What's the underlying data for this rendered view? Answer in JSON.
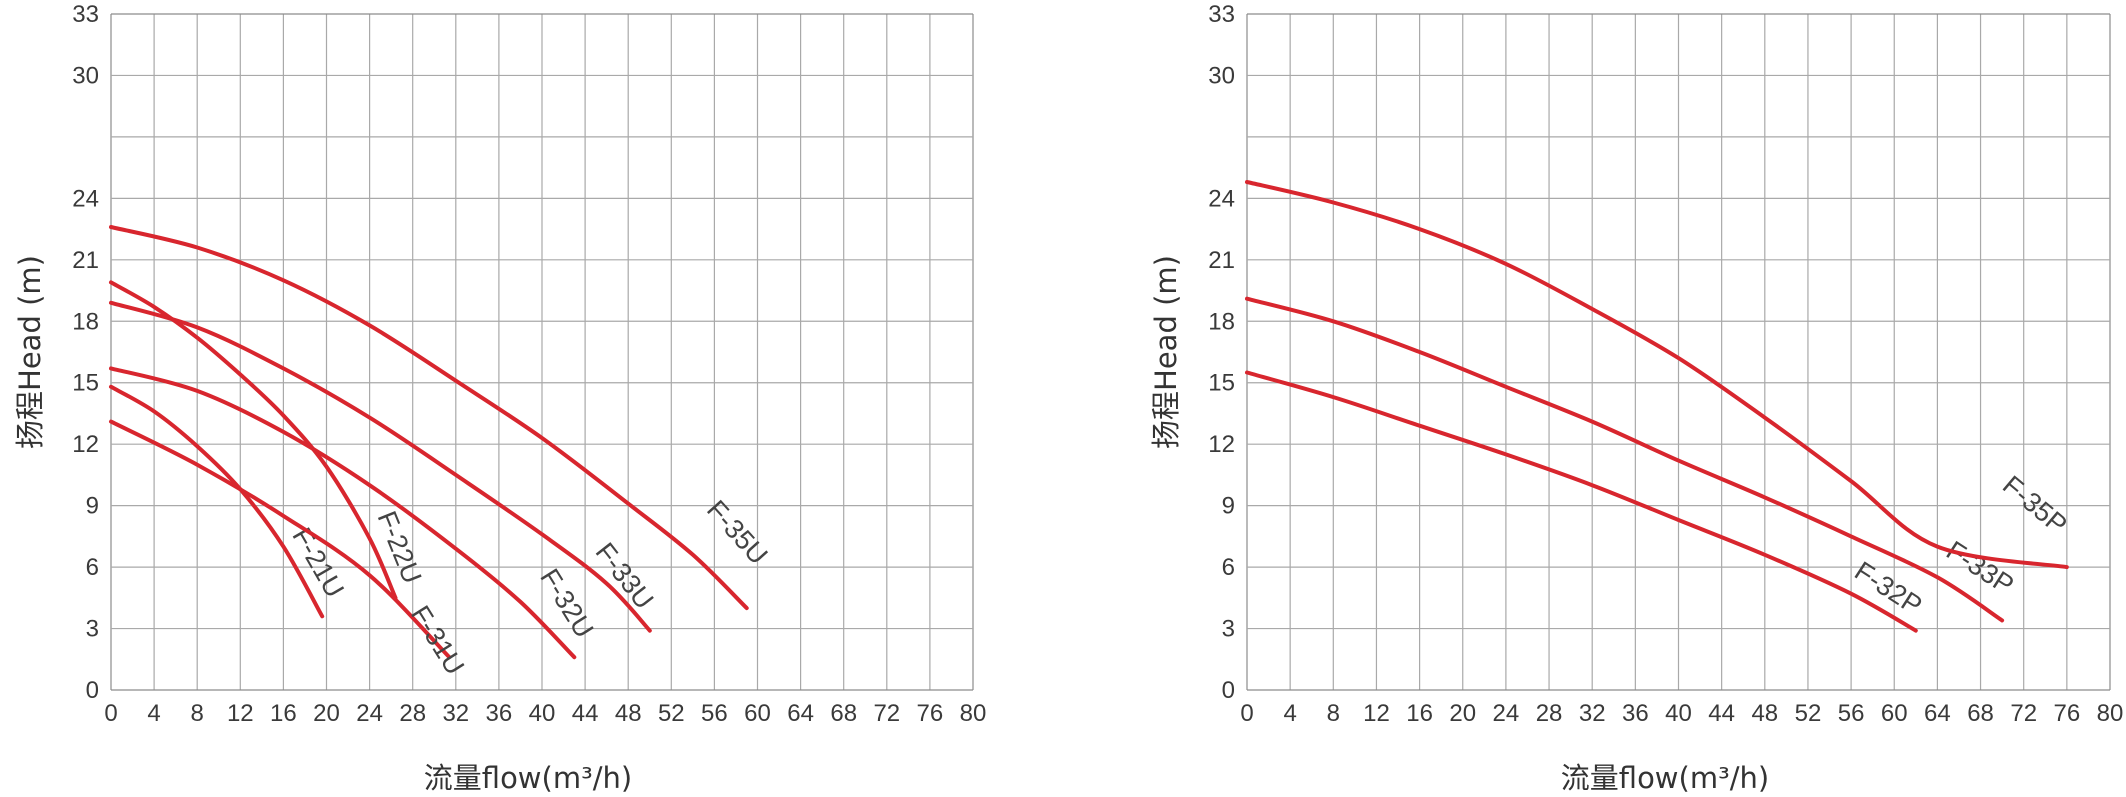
{
  "chart_data": [
    {
      "type": "line",
      "xlabel": "流量flow(m³/h)",
      "ylabel": "扬程Head (m)",
      "xlim": [
        0,
        80
      ],
      "ylim": [
        0,
        33
      ],
      "x_ticks": [
        "0",
        "4",
        "8",
        "12",
        "16",
        "20",
        "24",
        "28",
        "32",
        "36",
        "40",
        "44",
        "48",
        "52",
        "56",
        "60",
        "64",
        "68",
        "72",
        "76",
        "80"
      ],
      "y_ticks": [
        "0",
        "3",
        "6",
        "9",
        "12",
        "15",
        "18",
        "21",
        "24",
        "30",
        "33"
      ],
      "grid": true,
      "color": "#d8262e",
      "series": [
        {
          "name": "F-21U",
          "label_at": [
            18.5,
            6.0
          ],
          "label_angle": 60,
          "points": [
            [
              0,
              14.8
            ],
            [
              4,
              13.6
            ],
            [
              8,
              11.9
            ],
            [
              12,
              9.8
            ],
            [
              16,
              7.0
            ],
            [
              19.6,
              3.6
            ]
          ]
        },
        {
          "name": "F-22U",
          "label_at": [
            26.0,
            6.8
          ],
          "label_angle": 68,
          "points": [
            [
              0,
              19.9
            ],
            [
              4,
              18.7
            ],
            [
              8,
              17.2
            ],
            [
              12,
              15.4
            ],
            [
              16,
              13.4
            ],
            [
              20,
              10.9
            ],
            [
              24,
              7.4
            ],
            [
              26.4,
              4.5
            ]
          ]
        },
        {
          "name": "F-31U",
          "label_at": [
            29.6,
            2.2
          ],
          "label_angle": 58,
          "points": [
            [
              0,
              13.1
            ],
            [
              8,
              11.0
            ],
            [
              16,
              8.5
            ],
            [
              24,
              5.6
            ],
            [
              31.4,
              1.6
            ]
          ]
        },
        {
          "name": "F-32U",
          "label_at": [
            41.6,
            4.0
          ],
          "label_angle": 58,
          "points": [
            [
              0,
              15.7
            ],
            [
              8,
              14.6
            ],
            [
              16,
              12.6
            ],
            [
              24,
              10.0
            ],
            [
              32,
              6.9
            ],
            [
              38,
              4.3
            ],
            [
              43,
              1.6
            ]
          ]
        },
        {
          "name": "F-33U",
          "label_at": [
            47.0,
            5.3
          ],
          "label_angle": 52,
          "points": [
            [
              0,
              18.9
            ],
            [
              8,
              17.7
            ],
            [
              16,
              15.7
            ],
            [
              24,
              13.3
            ],
            [
              32,
              10.5
            ],
            [
              40,
              7.6
            ],
            [
              46,
              5.2
            ],
            [
              50,
              2.9
            ]
          ]
        },
        {
          "name": "F-35U",
          "label_at": [
            57.5,
            7.4
          ],
          "label_angle": 48,
          "points": [
            [
              0,
              22.6
            ],
            [
              8,
              21.6
            ],
            [
              16,
              20.0
            ],
            [
              24,
              17.8
            ],
            [
              32,
              15.1
            ],
            [
              40,
              12.3
            ],
            [
              48,
              9.1
            ],
            [
              54,
              6.6
            ],
            [
              59,
              4.0
            ]
          ]
        }
      ]
    },
    {
      "type": "line",
      "xlabel": "流量flow(m³/h)",
      "ylabel": "扬程Head (m)",
      "xlim": [
        0,
        80
      ],
      "ylim": [
        0,
        33
      ],
      "x_ticks": [
        "0",
        "4",
        "8",
        "12",
        "16",
        "20",
        "24",
        "28",
        "32",
        "36",
        "40",
        "44",
        "48",
        "52",
        "56",
        "60",
        "64",
        "68",
        "72",
        "76",
        "80"
      ],
      "y_ticks": [
        "0",
        "3",
        "6",
        "9",
        "12",
        "15",
        "18",
        "21",
        "24",
        "30",
        "33"
      ],
      "grid": true,
      "color": "#d8262e",
      "series": [
        {
          "name": "F-32P",
          "label_at": [
            59.0,
            4.6
          ],
          "label_angle": 33,
          "points": [
            [
              0,
              15.5
            ],
            [
              8,
              14.3
            ],
            [
              16,
              12.9
            ],
            [
              24,
              11.5
            ],
            [
              32,
              10.0
            ],
            [
              40,
              8.3
            ],
            [
              48,
              6.6
            ],
            [
              56,
              4.7
            ],
            [
              62,
              2.9
            ]
          ]
        },
        {
          "name": "F-33P",
          "label_at": [
            67.5,
            5.6
          ],
          "label_angle": 33,
          "points": [
            [
              0,
              19.1
            ],
            [
              8,
              18.0
            ],
            [
              16,
              16.5
            ],
            [
              24,
              14.8
            ],
            [
              32,
              13.1
            ],
            [
              40,
              11.2
            ],
            [
              48,
              9.4
            ],
            [
              56,
              7.5
            ],
            [
              64,
              5.5
            ],
            [
              70,
              3.4
            ]
          ]
        },
        {
          "name": "F-35P",
          "label_at": [
            72.5,
            8.7
          ],
          "label_angle": 40,
          "points": [
            [
              0,
              24.8
            ],
            [
              8,
              23.8
            ],
            [
              16,
              22.5
            ],
            [
              24,
              20.8
            ],
            [
              32,
              18.6
            ],
            [
              40,
              16.2
            ],
            [
              48,
              13.3
            ],
            [
              56,
              10.2
            ],
            [
              64,
              7.0
            ],
            [
              76,
              6.0
            ]
          ]
        }
      ]
    }
  ]
}
